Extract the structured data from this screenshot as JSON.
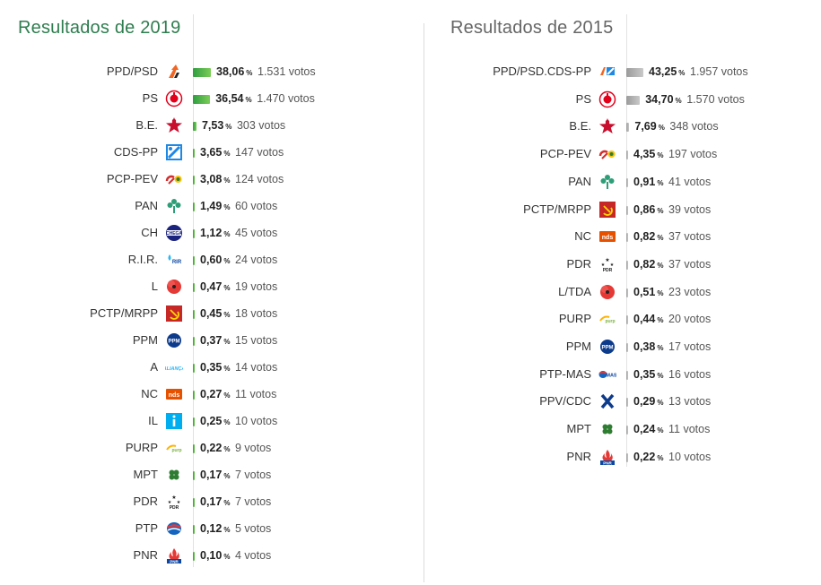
{
  "chart_data": [
    {
      "type": "bar",
      "orientation": "horizontal",
      "title": "Resultados de 2019",
      "title_color": "#2e7d4f",
      "bar_color": "#4fbf4a",
      "xlim": [
        0,
        38.06
      ],
      "categories": [
        "PPD/PSD",
        "PS",
        "B.E.",
        "CDS-PP",
        "PCP-PEV",
        "PAN",
        "CH",
        "R.I.R.",
        "L",
        "PCTP/MRPP",
        "PPM",
        "A",
        "NC",
        "IL",
        "PURP",
        "MPT",
        "PDR",
        "PTP",
        "PNR"
      ],
      "percent_labels": [
        "38,06",
        "36,54",
        "7,53",
        "3,65",
        "3,08",
        "1,49",
        "1,12",
        "0,60",
        "0,47",
        "0,45",
        "0,37",
        "0,35",
        "0,27",
        "0,25",
        "0,22",
        "0,17",
        "0,17",
        "0,12",
        "0,10"
      ],
      "values": [
        38.06,
        36.54,
        7.53,
        3.65,
        3.08,
        1.49,
        1.12,
        0.6,
        0.47,
        0.45,
        0.37,
        0.35,
        0.27,
        0.25,
        0.22,
        0.17,
        0.17,
        0.12,
        0.1
      ],
      "votes": [
        "1.531 votos",
        "1.470 votos",
        "303 votos",
        "147 votos",
        "124 votos",
        "60 votos",
        "45 votos",
        "24 votos",
        "19 votos",
        "18 votos",
        "15 votos",
        "14 votos",
        "11 votos",
        "10 votos",
        "9 votos",
        "7 votos",
        "7 votos",
        "5 votos",
        "4 votos"
      ],
      "logos": [
        "psd-logo-icon",
        "ps-logo-icon",
        "be-star-icon",
        "cds-logo-icon",
        "cdu-logo-icon",
        "pan-tree-icon",
        "chega-logo-icon",
        "rir-logo-icon",
        "livre-poppy-icon",
        "mrpp-hammer-sickle-icon",
        "ppm-logo-icon",
        "alianca-logo-icon",
        "nds-logo-icon",
        "il-logo-icon",
        "purp-logo-icon",
        "mpt-clover-icon",
        "pdr-stars-icon",
        "ptp-logo-icon",
        "pnr-flame-icon"
      ]
    },
    {
      "type": "bar",
      "orientation": "horizontal",
      "title": "Resultados de 2015",
      "title_color": "#666666",
      "bar_color": "#aaaaaa",
      "xlim": [
        0,
        43.25
      ],
      "categories": [
        "PPD/PSD.CDS-PP",
        "PS",
        "B.E.",
        "PCP-PEV",
        "PAN",
        "PCTP/MRPP",
        "NC",
        "PDR",
        "L/TDA",
        "PURP",
        "PPM",
        "PTP-MAS",
        "PPV/CDC",
        "MPT",
        "PNR"
      ],
      "percent_labels": [
        "43,25",
        "34,70",
        "7,69",
        "4,35",
        "0,91",
        "0,86",
        "0,82",
        "0,82",
        "0,51",
        "0,44",
        "0,38",
        "0,35",
        "0,29",
        "0,24",
        "0,22"
      ],
      "values": [
        43.25,
        34.7,
        7.69,
        4.35,
        0.91,
        0.86,
        0.82,
        0.82,
        0.51,
        0.44,
        0.38,
        0.35,
        0.29,
        0.24,
        0.22
      ],
      "votes": [
        "1.957 votos",
        "1.570 votos",
        "348 votos",
        "197 votos",
        "41 votos",
        "39 votos",
        "37 votos",
        "37 votos",
        "23 votos",
        "20 votos",
        "17 votos",
        "16 votos",
        "13 votos",
        "11 votos",
        "10 votos"
      ],
      "logos": [
        "paf-logo-icon",
        "ps-logo-icon",
        "be-star-icon",
        "cdu-logo-icon",
        "pan-tree-icon",
        "mrpp-hammer-sickle-icon",
        "nds-logo-icon",
        "pdr-stars-icon",
        "livre-poppy-icon",
        "purp-logo-icon",
        "ppm-logo-icon",
        "ptp-mas-logo-icon",
        "ppv-logo-icon",
        "mpt-clover-icon",
        "pnr-flame-icon"
      ]
    }
  ],
  "percent_sign": "%"
}
